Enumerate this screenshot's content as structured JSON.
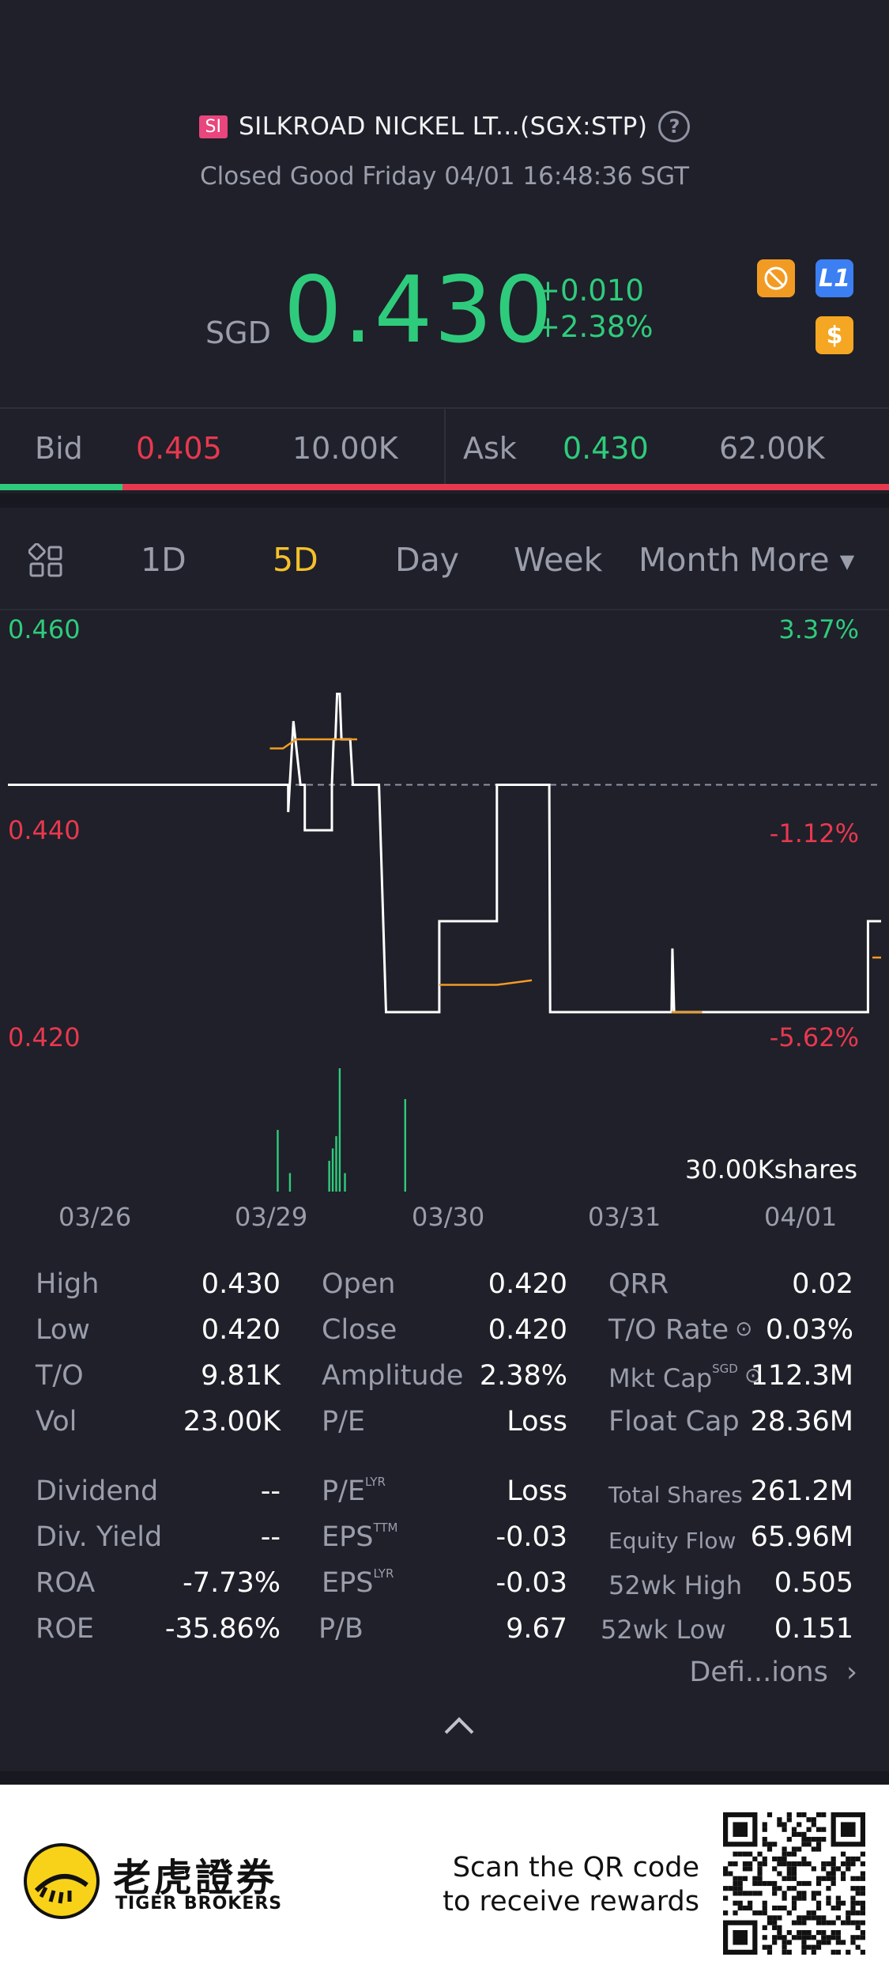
{
  "header": {
    "badge": "SI",
    "title": "SILKROAD NICKEL LT...(SGX:STP)",
    "status": "Closed Good Friday 04/01 16:48:36 SGT",
    "currency": "SGD",
    "price": "0.430",
    "change_abs": "+0.010",
    "change_pct": "+2.38%",
    "icons": [
      "shortable-off-icon",
      "level1-icon",
      "dollar-icon"
    ],
    "l1_label": "L1",
    "dollar_label": "$"
  },
  "bidask": {
    "bid_label": "Bid",
    "bid_price": "0.405",
    "bid_size": "10.00K",
    "ask_label": "Ask",
    "ask_price": "0.430",
    "ask_size": "62.00K",
    "bid_ratio": 0.138
  },
  "tabs": {
    "items": [
      "1D",
      "5D",
      "Day",
      "Week",
      "Month"
    ],
    "active": "5D",
    "more": "More"
  },
  "chart_data": {
    "type": "line",
    "period": "5D",
    "x_labels": [
      "03/26",
      "03/29",
      "03/30",
      "03/31",
      "04/01"
    ],
    "y_left_labels": [
      "0.460",
      "0.440",
      "0.420"
    ],
    "y_right_labels": [
      "3.37%",
      "-1.12%",
      "-5.62%"
    ],
    "ylim": [
      0.42,
      0.46
    ],
    "prev_close": 0.445,
    "volume_label": "30.00Kshares",
    "series": [
      {
        "kind": "price",
        "color": "#ffffff",
        "points": [
          [
            0,
            0.445
          ],
          [
            0.3,
            0.445
          ],
          [
            0.321,
            0.445
          ],
          [
            0.321,
            0.442
          ],
          [
            0.327,
            0.452
          ],
          [
            0.335,
            0.445
          ],
          [
            0.34,
            0.445
          ],
          [
            0.34,
            0.44
          ],
          [
            0.371,
            0.44
          ],
          [
            0.371,
            0.445
          ],
          [
            0.373,
            0.45
          ],
          [
            0.375,
            0.45
          ],
          [
            0.377,
            0.455
          ],
          [
            0.38,
            0.455
          ],
          [
            0.382,
            0.45
          ],
          [
            0.392,
            0.45
          ],
          [
            0.395,
            0.445
          ],
          [
            0.425,
            0.445
          ],
          [
            0.433,
            0.42
          ],
          [
            0.494,
            0.42
          ],
          [
            0.494,
            0.43
          ],
          [
            0.56,
            0.43
          ],
          [
            0.56,
            0.445
          ],
          [
            0.62,
            0.445
          ],
          [
            0.621,
            0.42
          ],
          [
            0.76,
            0.42
          ],
          [
            0.761,
            0.427
          ],
          [
            0.763,
            0.42
          ],
          [
            0.985,
            0.42
          ],
          [
            0.985,
            0.43
          ],
          [
            1,
            0.43
          ]
        ]
      },
      {
        "kind": "average",
        "color": "#f29b24",
        "points": [
          [
            0.3,
            0.449
          ],
          [
            0.315,
            0.449
          ],
          [
            0.33,
            0.45
          ],
          [
            0.37,
            0.45
          ],
          [
            0.4,
            0.45
          ],
          [
            null,
            null
          ],
          [
            0.494,
            0.423
          ],
          [
            0.56,
            0.423
          ],
          [
            0.6,
            0.4235
          ],
          [
            null,
            null
          ],
          [
            0.76,
            0.42
          ],
          [
            0.795,
            0.42
          ],
          [
            null,
            null
          ],
          [
            0.99,
            0.426
          ],
          [
            1,
            0.426
          ]
        ]
      }
    ],
    "volume": [
      {
        "x": 0.309,
        "v": 0.5
      },
      {
        "x": 0.323,
        "v": 0.15
      },
      {
        "x": 0.368,
        "v": 0.25
      },
      {
        "x": 0.372,
        "v": 0.35
      },
      {
        "x": 0.376,
        "v": 0.45
      },
      {
        "x": 0.38,
        "v": 1.0
      },
      {
        "x": 0.386,
        "v": 0.15
      },
      {
        "x": 0.455,
        "v": 0.75
      }
    ]
  },
  "stats": {
    "col1": [
      {
        "label": "High",
        "value": "0.430"
      },
      {
        "label": "Low",
        "value": "0.420"
      },
      {
        "label": "T/O",
        "value": "9.81K"
      },
      {
        "label": "Vol",
        "value": "23.00K"
      },
      {
        "label": "Dividend",
        "value": "--"
      },
      {
        "label": "Div. Yield",
        "value": "--"
      },
      {
        "label": "ROA",
        "value": "-7.73%"
      },
      {
        "label": "ROE",
        "value": "-35.86%"
      }
    ],
    "col2": [
      {
        "label": "Open",
        "value": "0.420",
        "sup": ""
      },
      {
        "label": "Close",
        "value": "0.420",
        "sup": ""
      },
      {
        "label": "Amplitude",
        "value": "2.38%",
        "sup": ""
      },
      {
        "label": "P/E",
        "value": "Loss",
        "sup": ""
      },
      {
        "label": "P/E",
        "value": "Loss",
        "sup": "LYR"
      },
      {
        "label": "EPS",
        "value": "-0.03",
        "sup": "TTM"
      },
      {
        "label": "EPS",
        "value": "-0.03",
        "sup": "LYR"
      },
      {
        "label": "P/B",
        "value": "9.67",
        "sup": ""
      }
    ],
    "col3": [
      {
        "label": "QRR",
        "value": "0.02",
        "sup": ""
      },
      {
        "label": "T/O Rate",
        "value": "0.03%",
        "sup": ""
      },
      {
        "label": "Mkt Cap",
        "value": "112.3M",
        "sup": "SGD"
      },
      {
        "label": "Float Cap",
        "value": "28.36M",
        "sup": ""
      },
      {
        "label": "Total Shares",
        "value": "261.2M",
        "sup": ""
      },
      {
        "label": "Equity Flow",
        "value": "65.96M",
        "sup": ""
      },
      {
        "label": "52wk High",
        "value": "0.505",
        "sup": ""
      },
      {
        "label": "52wk Low",
        "value": "0.151",
        "sup": ""
      }
    ],
    "definitions_link": "Defi...ions"
  },
  "footer": {
    "brand_cn": "老虎證券",
    "brand_en": "TIGER BROKERS",
    "scan_line1": "Scan the QR code",
    "scan_line2": "to receive rewards"
  },
  "colors": {
    "green": "#2fcb7c",
    "red": "#e8384f",
    "gold": "#f5c12b",
    "orange": "#f29b24",
    "background": "#1f2029"
  }
}
